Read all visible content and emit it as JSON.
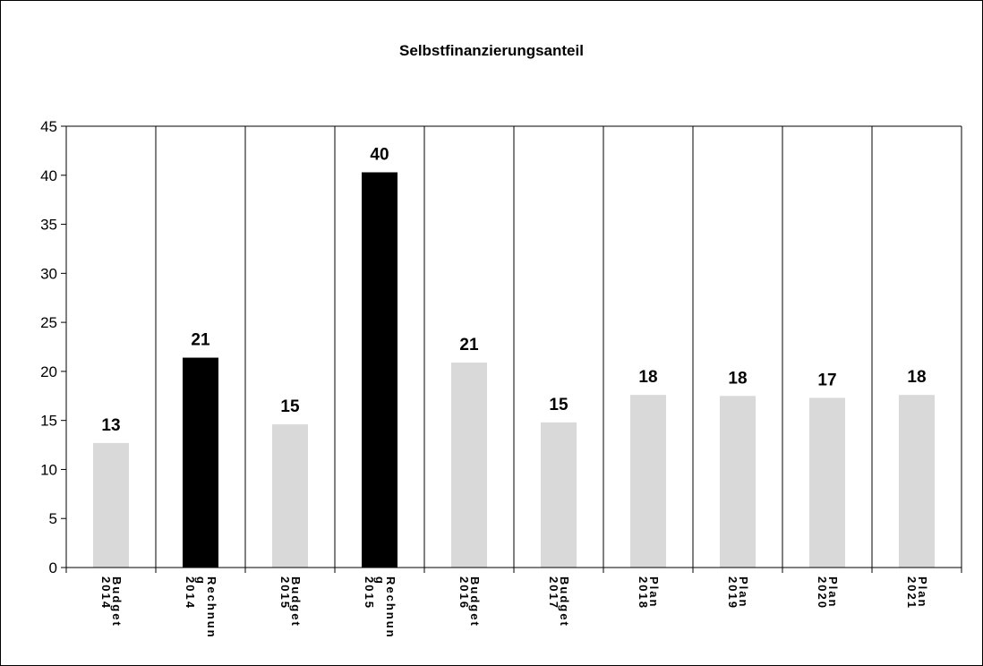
{
  "chart_data": {
    "type": "bar",
    "title": "Selbstfinanzierungsanteil",
    "xlabel": "",
    "ylabel": "",
    "ylim": [
      0,
      45
    ],
    "yticks": [
      0,
      5,
      10,
      15,
      20,
      25,
      30,
      35,
      40,
      45
    ],
    "grid": "vertical category separators",
    "legend": "none",
    "categories": [
      [
        "Budget",
        "2014"
      ],
      [
        "Rechnun",
        "g",
        "2014"
      ],
      [
        "Budget",
        "2015"
      ],
      [
        "Rechnun",
        "g",
        "2015"
      ],
      [
        "Budget",
        "2016"
      ],
      [
        "Budget",
        "2017"
      ],
      [
        "Plan",
        "2018"
      ],
      [
        "Plan",
        "2019"
      ],
      [
        "Plan",
        "2020"
      ],
      [
        "Plan",
        "2021"
      ]
    ],
    "values": [
      12.7,
      21.4,
      14.6,
      40.3,
      20.9,
      14.8,
      17.6,
      17.5,
      17.3,
      17.6
    ],
    "data_labels": [
      "13",
      "21",
      "15",
      "40",
      "21",
      "15",
      "18",
      "18",
      "17",
      "18"
    ],
    "bar_colors": [
      "#d9d9d9",
      "#000000",
      "#d9d9d9",
      "#000000",
      "#d9d9d9",
      "#d9d9d9",
      "#d9d9d9",
      "#d9d9d9",
      "#d9d9d9",
      "#d9d9d9"
    ]
  }
}
